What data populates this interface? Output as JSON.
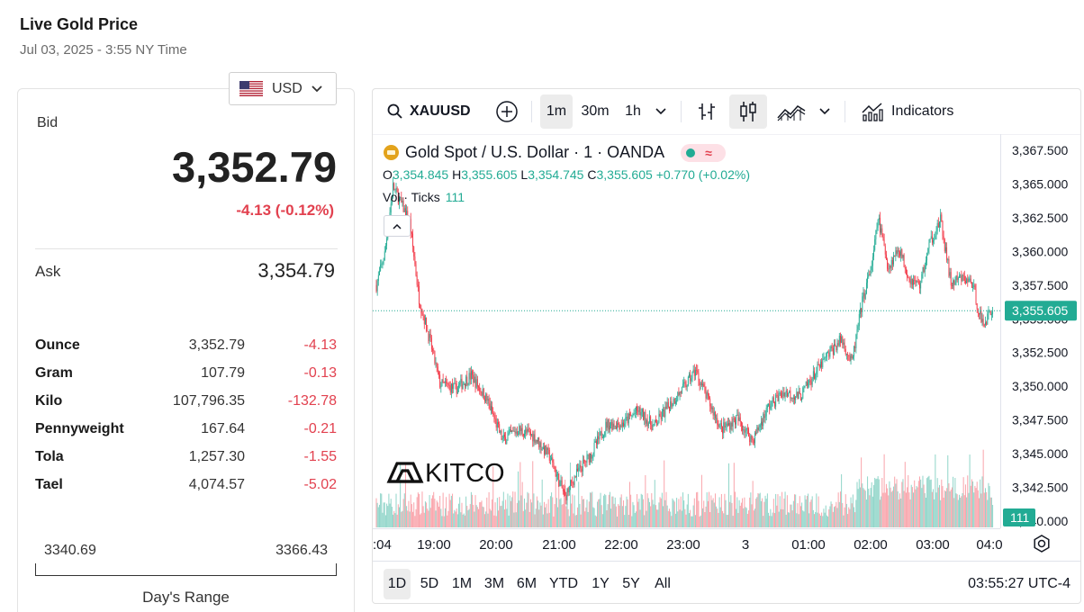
{
  "page": {
    "title": "Live Gold Price",
    "timestamp": "Jul 03, 2025 - 3:55 NY Time"
  },
  "currency": {
    "selected": "USD",
    "flag_icon": "us-flag-icon"
  },
  "quote": {
    "bid_label": "Bid",
    "bid": "3,352.79",
    "change": "-4.13 (-0.12%)",
    "ask_label": "Ask",
    "ask": "3,354.79",
    "down_color": "#e2414f"
  },
  "units": [
    {
      "name": "Ounce",
      "price": "3,352.79",
      "change": "-4.13"
    },
    {
      "name": "Gram",
      "price": "107.79",
      "change": "-0.13"
    },
    {
      "name": "Kilo",
      "price": "107,796.35",
      "change": "-132.78"
    },
    {
      "name": "Pennyweight",
      "price": "167.64",
      "change": "-0.21"
    },
    {
      "name": "Tola",
      "price": "1,257.30",
      "change": "-1.55"
    },
    {
      "name": "Tael",
      "price": "4,074.57",
      "change": "-5.02"
    }
  ],
  "days_range": {
    "low": "3340.69",
    "high": "3366.43",
    "label": "Day's Range"
  },
  "chart": {
    "toolbar": {
      "symbol": "XAUUSD",
      "intervals": [
        "1m",
        "30m",
        "1h"
      ],
      "active_interval": "1m",
      "indicators_label": "Indicators"
    },
    "legend": {
      "name": "Gold Spot / U.S. Dollar · 1 · OANDA",
      "o_label": "O",
      "o": "3,354.845",
      "h_label": "H",
      "h": "3,355.605",
      "l_label": "L",
      "l": "3,354.745",
      "c_label": "C",
      "c": "3,355.605",
      "delta": "+0.770 (+0.02%)",
      "vol_label": "Vol · Ticks",
      "vol_value": "111"
    },
    "current_price_label": "3,355.605",
    "current_volume_label": "111",
    "watermark": "KITCO",
    "range_buttons": [
      "1D",
      "5D",
      "1M",
      "3M",
      "6M",
      "YTD",
      "1Y",
      "5Y",
      "All"
    ],
    "active_range": "1D",
    "clock": "03:55:27 UTC-4",
    "up_color": "#22ab94",
    "down_color": "#f23645"
  },
  "chart_data": {
    "type": "candlestick",
    "title": "Gold Spot / U.S. Dollar · 1 · OANDA",
    "y_ticks": [
      "3,367.500",
      "3,365.000",
      "3,362.500",
      "3,360.000",
      "3,357.500",
      "3,355.000",
      "3,352.500",
      "3,350.000",
      "3,347.500",
      "3,345.000",
      "3,342.500",
      "3,340.000"
    ],
    "x_ticks": [
      ":04",
      "19:00",
      "20:00",
      "21:00",
      "22:00",
      "23:00",
      "3",
      "01:00",
      "02:00",
      "03:00",
      "04:0"
    ],
    "ylim": [
      3339.5,
      3368.5
    ],
    "price_path": [
      [
        "18:04",
        3357.5
      ],
      [
        "18:12",
        3359.8
      ],
      [
        "18:20",
        3364.8
      ],
      [
        "18:28",
        3363.5
      ],
      [
        "18:36",
        3362.2
      ],
      [
        "18:45",
        3356.5
      ],
      [
        "18:55",
        3353.5
      ],
      [
        "19:05",
        3350.2
      ],
      [
        "19:20",
        3349.8
      ],
      [
        "19:35",
        3350.8
      ],
      [
        "19:50",
        3349.0
      ],
      [
        "20:05",
        3346.0
      ],
      [
        "20:20",
        3346.8
      ],
      [
        "20:35",
        3346.3
      ],
      [
        "20:50",
        3344.8
      ],
      [
        "21:05",
        3341.8
      ],
      [
        "21:15",
        3343.4
      ],
      [
        "21:30",
        3345.0
      ],
      [
        "21:45",
        3347.2
      ],
      [
        "22:00",
        3347.2
      ],
      [
        "22:15",
        3348.2
      ],
      [
        "22:30",
        3347.0
      ],
      [
        "22:45",
        3348.6
      ],
      [
        "23:00",
        3350.0
      ],
      [
        "23:10",
        3351.2
      ],
      [
        "23:20",
        3349.3
      ],
      [
        "23:35",
        3346.8
      ],
      [
        "23:50",
        3347.6
      ],
      [
        "00:05",
        3346.0
      ],
      [
        "00:20",
        3348.5
      ],
      [
        "00:35",
        3349.6
      ],
      [
        "00:50",
        3349.2
      ],
      [
        "01:05",
        3351.0
      ],
      [
        "01:20",
        3352.6
      ],
      [
        "01:30",
        3353.5
      ],
      [
        "01:40",
        3351.7
      ],
      [
        "01:50",
        3356.3
      ],
      [
        "02:00",
        3359.3
      ],
      [
        "02:05",
        3362.5
      ],
      [
        "02:15",
        3358.8
      ],
      [
        "02:25",
        3360.3
      ],
      [
        "02:35",
        3358.0
      ],
      [
        "02:45",
        3357.5
      ],
      [
        "02:55",
        3360.7
      ],
      [
        "03:05",
        3362.3
      ],
      [
        "03:15",
        3357.6
      ],
      [
        "03:25",
        3358.0
      ],
      [
        "03:35",
        3357.7
      ],
      [
        "03:45",
        3354.6
      ],
      [
        "03:55",
        3355.605
      ]
    ],
    "current_price": 3355.605,
    "current_volume": 111
  }
}
